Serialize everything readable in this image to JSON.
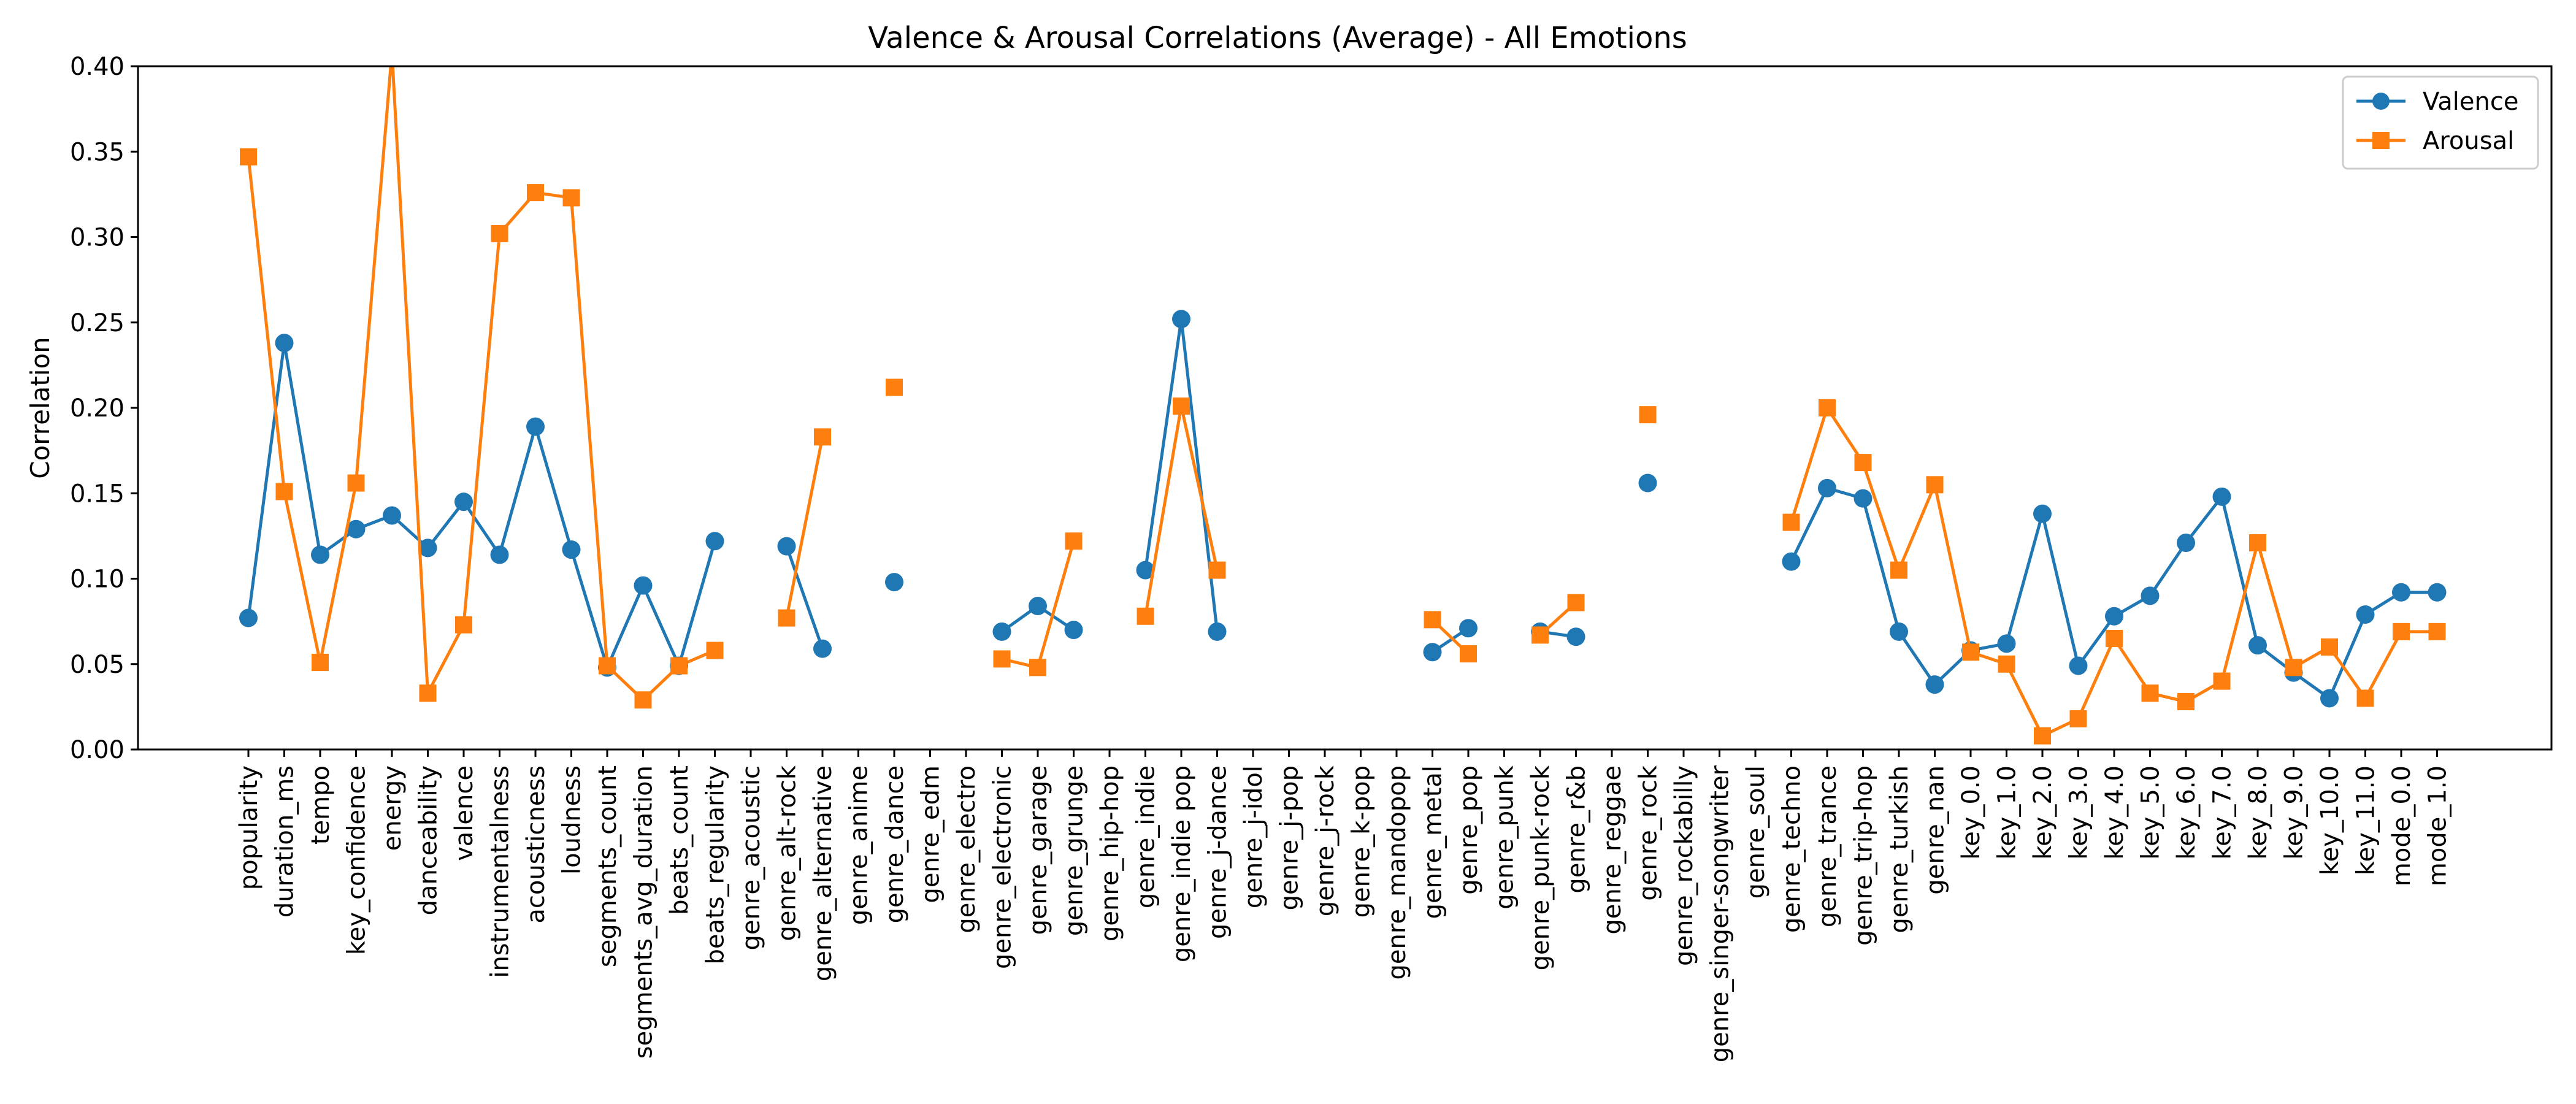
{
  "chart_data": {
    "type": "line",
    "title": "Valence & Arousal Correlations (Average) - All Emotions",
    "xlabel": "",
    "ylabel": "Correlation",
    "ylim": [
      0,
      0.4
    ],
    "yticks": [
      "0.00",
      "0.05",
      "0.10",
      "0.15",
      "0.20",
      "0.25",
      "0.30",
      "0.35",
      "0.40"
    ],
    "grid": false,
    "legend_position": "top-right",
    "zero_line": "dashed",
    "categories": [
      "popularity",
      "duration_ms",
      "tempo",
      "key_confidence",
      "energy",
      "danceability",
      "valence",
      "instrumentalness",
      "acousticness",
      "loudness",
      "segments_count",
      "segments_avg_duration",
      "beats_count",
      "beats_regularity",
      "genre_acoustic",
      "genre_alt-rock",
      "genre_alternative",
      "genre_anime",
      "genre_dance",
      "genre_edm",
      "genre_electro",
      "genre_electronic",
      "genre_garage",
      "genre_grunge",
      "genre_hip-hop",
      "genre_indie",
      "genre_indie pop",
      "genre_j-dance",
      "genre_j-idol",
      "genre_j-pop",
      "genre_j-rock",
      "genre_k-pop",
      "genre_mandopop",
      "genre_metal",
      "genre_pop",
      "genre_punk",
      "genre_punk-rock",
      "genre_r&b",
      "genre_reggae",
      "genre_rock",
      "genre_rockabilly",
      "genre_singer-songwriter",
      "genre_soul",
      "genre_techno",
      "genre_trance",
      "genre_trip-hop",
      "genre_turkish",
      "genre_nan",
      "key_0.0",
      "key_1.0",
      "key_2.0",
      "key_3.0",
      "key_4.0",
      "key_5.0",
      "key_6.0",
      "key_7.0",
      "key_8.0",
      "key_9.0",
      "key_10.0",
      "key_11.0",
      "mode_0.0",
      "mode_1.0"
    ],
    "series": [
      {
        "name": "Valence",
        "color": "#1f77b4",
        "marker": "circle",
        "values": [
          0.077,
          0.238,
          0.114,
          0.129,
          0.137,
          0.118,
          0.145,
          0.114,
          0.189,
          0.117,
          0.048,
          0.096,
          0.049,
          0.122,
          null,
          0.119,
          0.059,
          null,
          0.098,
          null,
          null,
          0.069,
          0.084,
          0.07,
          null,
          0.105,
          0.252,
          0.069,
          null,
          null,
          null,
          null,
          null,
          0.057,
          0.071,
          null,
          0.069,
          0.066,
          null,
          0.156,
          null,
          null,
          null,
          0.11,
          0.153,
          0.147,
          0.069,
          0.038,
          0.058,
          0.062,
          0.138,
          0.049,
          0.078,
          0.09,
          0.121,
          0.148,
          0.061,
          0.045,
          0.03,
          0.079,
          0.092,
          0.092
        ]
      },
      {
        "name": "Arousal",
        "color": "#ff7f0e",
        "marker": "square",
        "values": [
          0.347,
          0.151,
          0.051,
          0.156,
          0.408,
          0.033,
          0.073,
          0.302,
          0.326,
          0.323,
          0.049,
          0.029,
          0.049,
          0.058,
          null,
          0.077,
          0.183,
          null,
          0.212,
          null,
          null,
          0.053,
          0.048,
          0.122,
          null,
          0.078,
          0.201,
          0.105,
          null,
          null,
          null,
          null,
          null,
          0.076,
          0.056,
          null,
          0.067,
          0.086,
          null,
          0.196,
          null,
          null,
          null,
          0.133,
          0.2,
          0.168,
          0.105,
          0.155,
          0.057,
          0.05,
          0.008,
          0.018,
          0.065,
          0.033,
          0.028,
          0.04,
          0.121,
          0.048,
          0.06,
          0.03,
          0.069,
          0.069
        ]
      }
    ]
  }
}
